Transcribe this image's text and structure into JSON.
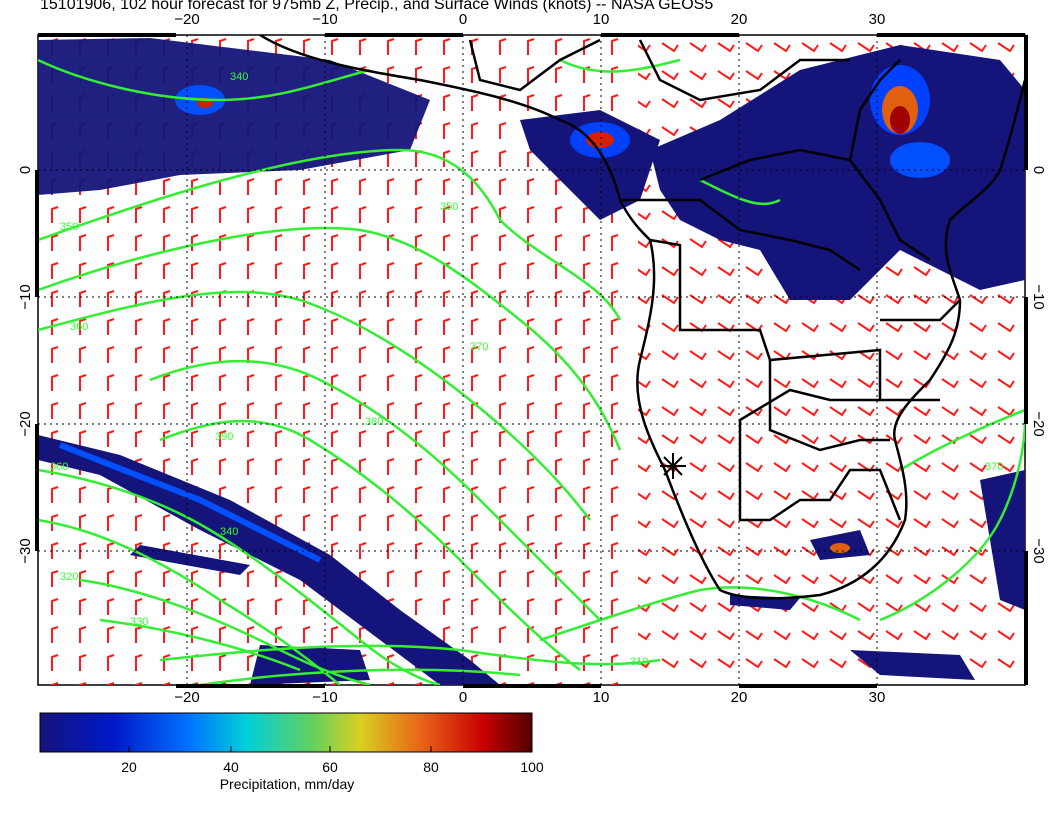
{
  "title": "15101906, 102 hour forecast for 975mb Z, Precip., and Surface Winds (knots) -- NASA GEOS5",
  "axes": {
    "x_ticks": [
      "−20",
      "−10",
      "0",
      "10",
      "20",
      "30"
    ],
    "y_ticks": [
      "0",
      "−10",
      "−20",
      "−30"
    ]
  },
  "contour_labels": [
    "340",
    "350",
    "360",
    "370",
    "380",
    "390",
    "330",
    "320",
    "310",
    "340",
    "350",
    "360",
    "370"
  ],
  "colorbar": {
    "label": "Precipitation, mm/day",
    "ticks": [
      "20",
      "40",
      "60",
      "80",
      "100"
    ],
    "colors": [
      "#1a1a8c",
      "#0030ff",
      "#00c8e8",
      "#c8d030",
      "#e86020",
      "#c00000",
      "#5a0000"
    ]
  },
  "colors": {
    "wind_barbs": "#ff1a1a",
    "height_contours": "#33ee33",
    "coastlines": "#000000",
    "precip_low": "#1a1a8c"
  },
  "icons": [
    "station-marker-icon"
  ]
}
